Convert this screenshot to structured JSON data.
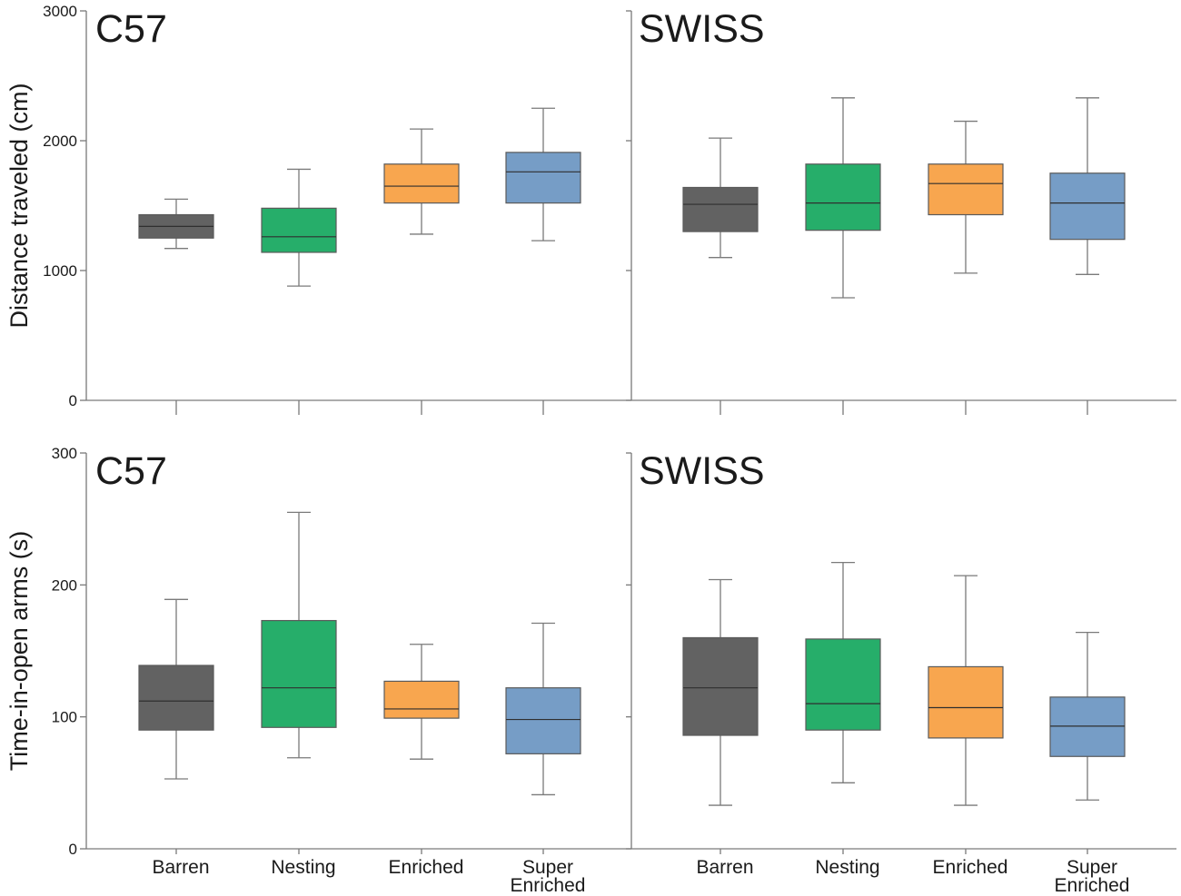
{
  "figure": {
    "colors": {
      "Barren": "#626262",
      "Nesting": "#26ae6a",
      "Enriched": "#f8a64f",
      "Super Enriched": "#769dc6"
    },
    "strains": [
      "C57",
      "SWISS"
    ],
    "categories": [
      "Barren",
      "Nesting",
      "Enriched",
      "Super Enriched"
    ],
    "category_label_lines": [
      [
        "Barren"
      ],
      [
        "Nesting"
      ],
      [
        "Enriched"
      ],
      [
        "Super",
        "Enriched"
      ]
    ]
  },
  "chart_data": [
    {
      "type": "box",
      "ylabel": "Distance traveled (cm)",
      "ylim": [
        0,
        3000
      ],
      "yticks": [
        0,
        1000,
        2000,
        3000
      ],
      "panels": [
        {
          "title": "C57",
          "boxes": [
            {
              "category": "Barren",
              "min": 1170,
              "q1": 1250,
              "median": 1340,
              "q3": 1430,
              "max": 1550
            },
            {
              "category": "Nesting",
              "min": 880,
              "q1": 1140,
              "median": 1260,
              "q3": 1480,
              "max": 1780
            },
            {
              "category": "Enriched",
              "min": 1280,
              "q1": 1520,
              "median": 1650,
              "q3": 1820,
              "max": 2090
            },
            {
              "category": "Super Enriched",
              "min": 1230,
              "q1": 1520,
              "median": 1760,
              "q3": 1910,
              "max": 2250
            }
          ]
        },
        {
          "title": "SWISS",
          "boxes": [
            {
              "category": "Barren",
              "min": 1100,
              "q1": 1300,
              "median": 1510,
              "q3": 1640,
              "max": 2020
            },
            {
              "category": "Nesting",
              "min": 790,
              "q1": 1310,
              "median": 1520,
              "q3": 1820,
              "max": 2330
            },
            {
              "category": "Enriched",
              "min": 980,
              "q1": 1430,
              "median": 1670,
              "q3": 1820,
              "max": 2150
            },
            {
              "category": "Super Enriched",
              "min": 970,
              "q1": 1240,
              "median": 1520,
              "q3": 1750,
              "max": 2330
            }
          ]
        }
      ]
    },
    {
      "type": "box",
      "ylabel": "Time-in-open arms (s)",
      "ylim": [
        0,
        300
      ],
      "yticks": [
        0,
        100,
        200,
        300
      ],
      "panels": [
        {
          "title": "C57",
          "boxes": [
            {
              "category": "Barren",
              "min": 53,
              "q1": 90,
              "median": 112,
              "q3": 139,
              "max": 189
            },
            {
              "category": "Nesting",
              "min": 69,
              "q1": 92,
              "median": 122,
              "q3": 173,
              "max": 255
            },
            {
              "category": "Enriched",
              "min": 68,
              "q1": 99,
              "median": 106,
              "q3": 127,
              "max": 155
            },
            {
              "category": "Super Enriched",
              "min": 41,
              "q1": 72,
              "median": 98,
              "q3": 122,
              "max": 171
            }
          ]
        },
        {
          "title": "SWISS",
          "boxes": [
            {
              "category": "Barren",
              "min": 33,
              "q1": 86,
              "median": 122,
              "q3": 160,
              "max": 204
            },
            {
              "category": "Nesting",
              "min": 50,
              "q1": 90,
              "median": 110,
              "q3": 159,
              "max": 217
            },
            {
              "category": "Enriched",
              "min": 33,
              "q1": 84,
              "median": 107,
              "q3": 138,
              "max": 207
            },
            {
              "category": "Super Enriched",
              "min": 37,
              "q1": 70,
              "median": 93,
              "q3": 115,
              "max": 164
            }
          ]
        }
      ]
    }
  ]
}
